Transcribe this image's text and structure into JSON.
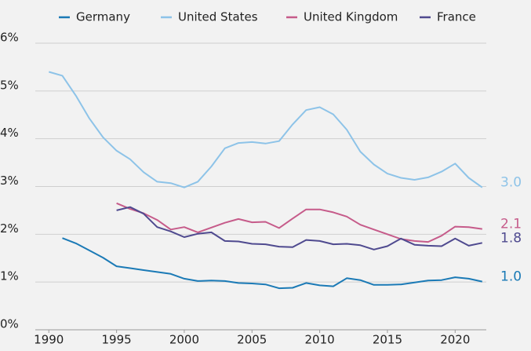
{
  "chart_data": {
    "type": "line",
    "x": [
      1990,
      1991,
      1992,
      1993,
      1994,
      1995,
      1996,
      1997,
      1998,
      1999,
      2000,
      2001,
      2002,
      2003,
      2004,
      2005,
      2006,
      2007,
      2008,
      2009,
      2010,
      2011,
      2012,
      2013,
      2014,
      2015,
      2016,
      2017,
      2018,
      2019,
      2020,
      2021,
      2022
    ],
    "series": [
      {
        "name": "Germany",
        "color": "#1b7ab6",
        "end_label": "1.0",
        "values": [
          null,
          1.92,
          1.81,
          1.66,
          1.51,
          1.33,
          1.29,
          1.25,
          1.21,
          1.17,
          1.07,
          1.02,
          1.03,
          1.02,
          0.98,
          0.97,
          0.95,
          0.87,
          0.88,
          0.98,
          0.93,
          0.91,
          1.08,
          1.04,
          0.94,
          0.94,
          0.95,
          0.99,
          1.03,
          1.04,
          1.1,
          1.07,
          1.01
        ]
      },
      {
        "name": "United States",
        "color": "#8dc3e8",
        "end_label": "3.0",
        "values": [
          5.4,
          5.32,
          4.9,
          4.42,
          4.03,
          3.75,
          3.57,
          3.3,
          3.1,
          3.07,
          2.98,
          3.1,
          3.42,
          3.8,
          3.91,
          3.93,
          3.9,
          3.95,
          4.3,
          4.6,
          4.66,
          4.51,
          4.19,
          3.73,
          3.46,
          3.27,
          3.18,
          3.14,
          3.19,
          3.31,
          3.48,
          3.18,
          2.98
        ]
      },
      {
        "name": "United Kingdom",
        "color": "#c65b8a",
        "end_label": "2.1",
        "values": [
          null,
          null,
          null,
          null,
          null,
          2.65,
          2.53,
          2.44,
          2.3,
          2.1,
          2.15,
          2.04,
          2.14,
          2.24,
          2.32,
          2.25,
          2.26,
          2.13,
          2.33,
          2.52,
          2.52,
          2.46,
          2.37,
          2.2,
          2.1,
          2.0,
          1.9,
          1.86,
          1.84,
          1.97,
          2.16,
          2.15,
          2.11
        ]
      },
      {
        "name": "France",
        "color": "#4f4a8f",
        "end_label": "1.8",
        "values": [
          null,
          null,
          null,
          null,
          null,
          2.5,
          2.57,
          2.43,
          2.15,
          2.06,
          1.94,
          2.01,
          2.04,
          1.86,
          1.85,
          1.8,
          1.79,
          1.74,
          1.73,
          1.88,
          1.86,
          1.79,
          1.8,
          1.77,
          1.68,
          1.75,
          1.91,
          1.78,
          1.76,
          1.75,
          1.91,
          1.76,
          1.82
        ]
      }
    ],
    "xlim": [
      1989,
      2022.3
    ],
    "xticks": [
      1990,
      1995,
      2000,
      2005,
      2010,
      2015,
      2020
    ],
    "ylim": [
      0,
      6
    ],
    "yticks": [
      {
        "value": 0,
        "label": "0%"
      },
      {
        "value": 1,
        "label": "1%"
      },
      {
        "value": 2,
        "label": "2%"
      },
      {
        "value": 3,
        "label": "3%"
      },
      {
        "value": 4,
        "label": "4%"
      },
      {
        "value": 5,
        "label": "5%"
      },
      {
        "value": 6,
        "label": "6%"
      }
    ],
    "grid": true,
    "legend": "top"
  }
}
